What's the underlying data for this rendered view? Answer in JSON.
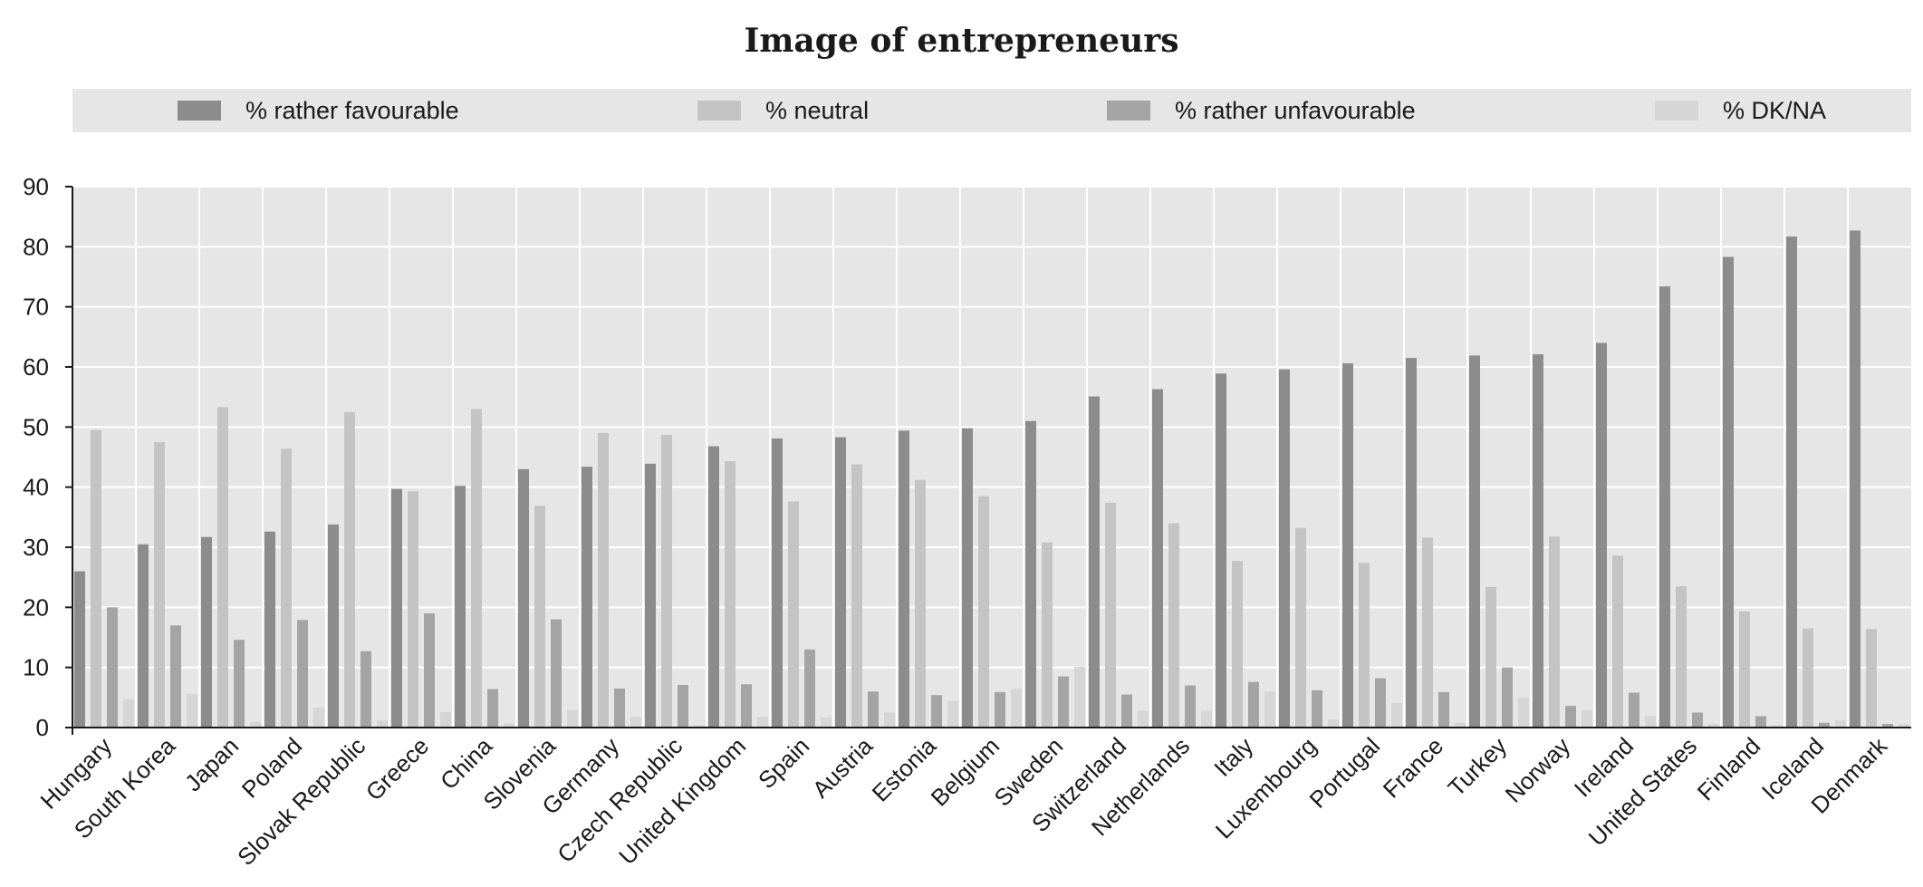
{
  "chart_data": {
    "type": "bar",
    "title": "Image of entrepreneurs",
    "xlabel": "",
    "ylabel": "",
    "ylim": [
      0,
      90
    ],
    "yticks": [
      0,
      10,
      20,
      30,
      40,
      50,
      60,
      70,
      80,
      90
    ],
    "grid": true,
    "legend_position": "top",
    "categories": [
      "Hungary",
      "South Korea",
      "Japan",
      "Poland",
      "Slovak Republic",
      "Greece",
      "China",
      "Slovenia",
      "Germany",
      "Czech Republic",
      "United Kingdom",
      "Spain",
      "Austria",
      "Estonia",
      "Belgium",
      "Sweden",
      "Switzerland",
      "Netherlands",
      "Italy",
      "Luxembourg",
      "Portugal",
      "France",
      "Turkey",
      "Norway",
      "Ireland",
      "United States",
      "Finland",
      "Iceland",
      "Denmark"
    ],
    "series": [
      {
        "name": "% rather favourable",
        "color": "#8c8c8c",
        "values": [
          26,
          30.5,
          31.7,
          32.6,
          33.8,
          39.7,
          40.2,
          43,
          43.4,
          43.9,
          46.8,
          48.1,
          48.3,
          49.4,
          49.8,
          51,
          55.1,
          56.3,
          58.9,
          59.6,
          60.6,
          61.5,
          61.9,
          62.1,
          64,
          73.4,
          78.3,
          81.7,
          82.7
        ]
      },
      {
        "name": "% neutral",
        "color": "#c4c4c4",
        "values": [
          49.5,
          47.5,
          53.3,
          46.4,
          52.5,
          39.3,
          53,
          36.9,
          49,
          48.7,
          44.3,
          37.6,
          43.8,
          41.2,
          38.5,
          30.8,
          37.4,
          34,
          27.7,
          33.2,
          27.4,
          31.6,
          23.4,
          31.8,
          28.6,
          23.5,
          19.3,
          16.5,
          16.4
        ]
      },
      {
        "name": "% rather unfavourable",
        "color": "#a4a4a4",
        "values": [
          20,
          17,
          14.6,
          17.9,
          12.7,
          19,
          6.4,
          18,
          6.5,
          7.1,
          7.2,
          13,
          6,
          5.4,
          5.9,
          8.5,
          5.5,
          7,
          7.6,
          6.2,
          8.2,
          5.9,
          10,
          3.6,
          5.8,
          2.5,
          1.9,
          0.8,
          0.6
        ]
      },
      {
        "name": "% DK/NA",
        "color": "#d6d6d6",
        "values": [
          4.7,
          5.6,
          1,
          3.3,
          1.2,
          2.6,
          0.7,
          2.9,
          1.8,
          0.4,
          1.8,
          1.7,
          2.5,
          4.4,
          6.4,
          10.1,
          2.8,
          2.8,
          6,
          1.3,
          4.1,
          0.8,
          5,
          2.9,
          1.9,
          0.6,
          0.4,
          1.2,
          0.6
        ]
      }
    ]
  }
}
